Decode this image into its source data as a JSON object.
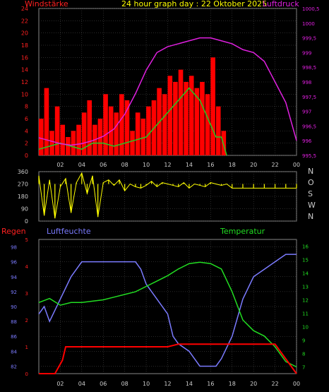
{
  "header": {
    "left_label": "Windstärke",
    "title": "24 hour graph day : 22 Oktober 2025",
    "right_label": "Luftdruck"
  },
  "colors": {
    "background": "#000000",
    "grid": "#555555",
    "wind": "#ff0000",
    "gust": "#22cc22",
    "calm": "#ddffdd",
    "pressure": "#e020e0",
    "direction": "#ffff00",
    "rain": "#ff0000",
    "humidity": "#7b7bff",
    "temperature": "#22dd22",
    "axis_text": "#cccccc"
  },
  "x_ticks": [
    "02",
    "04",
    "06",
    "08",
    "10",
    "12",
    "14",
    "16",
    "18",
    "20",
    "22",
    "00"
  ],
  "wind_axis": [
    "0",
    "2",
    "4",
    "6",
    "8",
    "10",
    "12",
    "14",
    "16",
    "18",
    "20",
    "22",
    "24"
  ],
  "pressure_axis": [
    "995,5",
    "996",
    "996,5",
    "997",
    "997,5",
    "998",
    "998,5",
    "999",
    "999,5",
    "1000",
    "1000,5"
  ],
  "direction_axis": [
    "0",
    "90",
    "180",
    "270",
    "360"
  ],
  "direction_letters": [
    "N",
    "W",
    "S",
    "O",
    "N"
  ],
  "bottom_labels": {
    "rain": "Regen",
    "humidity": "Luftfeuchte",
    "temperature": "Temperatur"
  },
  "rain_axis": [
    "0",
    "1",
    "2",
    "3",
    "4",
    "5"
  ],
  "humidity_axis": [
    "82",
    "84",
    "86",
    "88",
    "90",
    "92",
    "94",
    "96",
    "98"
  ],
  "temperature_axis": [
    "7",
    "8",
    "9",
    "10",
    "11",
    "12",
    "13",
    "14",
    "15",
    "16"
  ],
  "chart_data": [
    {
      "type": "bar",
      "series": [
        {
          "name": "Windstärke",
          "x": [
            0,
            0.5,
            1,
            1.5,
            2,
            2.5,
            3,
            3.5,
            4,
            4.5,
            5,
            5.5,
            6,
            6.5,
            7,
            7.5,
            8,
            8.5,
            9,
            9.5,
            10,
            10.5,
            11,
            11.5,
            12,
            12.5,
            13,
            13.5,
            14,
            14.5,
            15,
            15.5,
            16,
            16.5,
            17,
            17.5
          ],
          "values": [
            6,
            11,
            4,
            8,
            5,
            3,
            4,
            5,
            7,
            9,
            5,
            6,
            10,
            8,
            7,
            10,
            9,
            4,
            7,
            6,
            8,
            9,
            11,
            10,
            13,
            12,
            14,
            12,
            13,
            11,
            12,
            10,
            16,
            8,
            4,
            0
          ]
        },
        {
          "name": "Böen",
          "x": [
            0,
            1,
            2,
            3,
            4,
            5,
            6,
            7,
            8,
            9,
            10,
            11,
            12,
            13,
            14,
            15,
            16,
            16.5,
            17,
            17.5
          ],
          "values": [
            1,
            1.5,
            2,
            1.5,
            1,
            2,
            2,
            1.5,
            2,
            2.5,
            3,
            5,
            7,
            9,
            11,
            9,
            5,
            3,
            3,
            0
          ]
        }
      ],
      "xlim": [
        0,
        24
      ],
      "ylim": [
        0,
        24
      ]
    },
    {
      "type": "line",
      "series": [
        {
          "name": "Luftdruck",
          "x": [
            0,
            1,
            2,
            3,
            4,
            5,
            6,
            7,
            8,
            9,
            10,
            11,
            12,
            13,
            14,
            15,
            16,
            17,
            18,
            19,
            20,
            21,
            22,
            23,
            24
          ],
          "values": [
            996.1,
            996.0,
            995.9,
            995.85,
            995.9,
            996.0,
            996.15,
            996.4,
            996.9,
            997.6,
            998.4,
            999.0,
            999.2,
            999.3,
            999.4,
            999.5,
            999.5,
            999.4,
            999.3,
            999.1,
            999.0,
            998.7,
            998.0,
            997.3,
            996.0
          ]
        }
      ],
      "xlim": [
        0,
        24
      ],
      "ylim": [
        995.5,
        1000.5
      ]
    },
    {
      "type": "scatter",
      "series": [
        {
          "name": "Windrichtung",
          "x": [
            0,
            0.5,
            1,
            1.5,
            2,
            2.5,
            3,
            3.5,
            4,
            4.5,
            5,
            5.5,
            6,
            6.5,
            7,
            7.5,
            8,
            8.5,
            9,
            9.5,
            10,
            10.5,
            11,
            11.5,
            12,
            12.5,
            13,
            13.5,
            14,
            14.5,
            15,
            15.5,
            16,
            16.5,
            17,
            17.5,
            18,
            19,
            20,
            21,
            22,
            23,
            24
          ],
          "values": [
            330,
            40,
            300,
            20,
            250,
            310,
            60,
            280,
            350,
            200,
            330,
            30,
            280,
            300,
            260,
            300,
            220,
            270,
            250,
            240,
            260,
            290,
            250,
            280,
            270,
            260,
            250,
            280,
            240,
            270,
            260,
            250,
            280,
            270,
            260,
            270,
            240,
            240,
            240,
            240,
            240,
            240,
            240
          ]
        }
      ],
      "xlim": [
        0,
        24
      ],
      "ylim": [
        0,
        360
      ]
    },
    {
      "type": "line",
      "series": [
        {
          "name": "Luftfeuchte",
          "x": [
            0,
            0.5,
            1,
            2,
            3,
            4,
            5,
            6,
            7,
            8,
            9,
            9.5,
            10,
            11,
            12,
            12.5,
            13,
            14,
            14.5,
            15,
            15.5,
            16,
            16.5,
            17,
            18,
            19,
            20,
            21,
            22,
            23,
            24
          ],
          "values": [
            89,
            90,
            88,
            91,
            94,
            96,
            96,
            96,
            96,
            96,
            96,
            95,
            93,
            91,
            89,
            86,
            85,
            84,
            83,
            82,
            82,
            82,
            82,
            83,
            86,
            91,
            94,
            95,
            96,
            97,
            97
          ]
        },
        {
          "name": "Temperatur",
          "x": [
            0,
            1,
            2,
            3,
            4,
            5,
            6,
            7,
            8,
            9,
            10,
            11,
            12,
            13,
            14,
            15,
            16,
            17,
            18,
            19,
            20,
            21,
            22,
            23,
            24
          ],
          "values": [
            11.8,
            12.1,
            11.6,
            11.8,
            11.8,
            11.9,
            12.0,
            12.2,
            12.4,
            12.6,
            13.0,
            13.4,
            13.8,
            14.3,
            14.7,
            14.8,
            14.7,
            14.3,
            12.6,
            10.5,
            9.7,
            9.3,
            8.5,
            7.4,
            7.0
          ]
        },
        {
          "name": "Regen",
          "x": [
            0,
            1.5,
            2.2,
            2.5,
            12,
            13,
            14,
            16,
            18,
            20,
            22,
            24
          ],
          "values": [
            0,
            0,
            0.5,
            1,
            1,
            1.1,
            1.1,
            1.1,
            1.1,
            1.1,
            1.1,
            0
          ]
        }
      ],
      "xlim": [
        0,
        24
      ]
    }
  ]
}
